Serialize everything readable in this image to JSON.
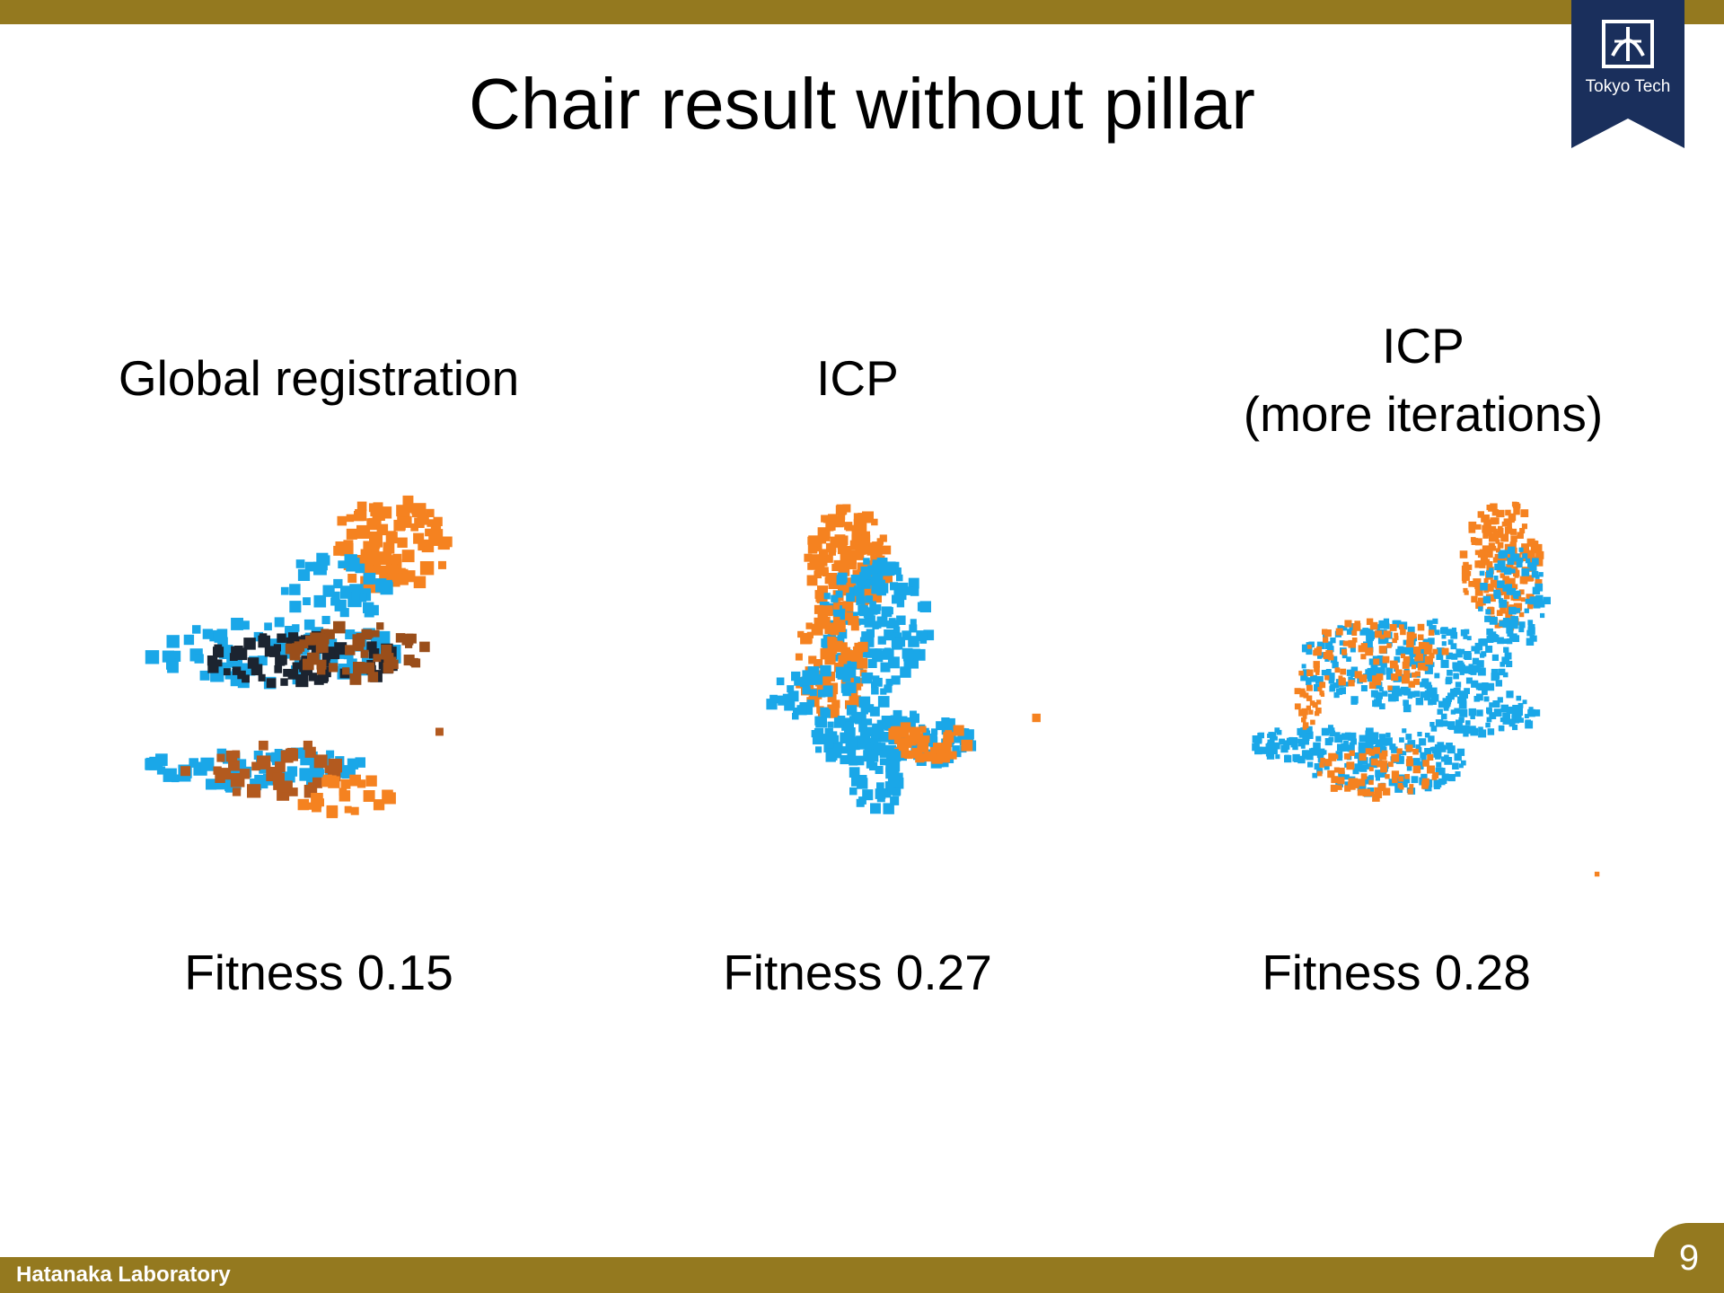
{
  "slide": {
    "title": "Chair result without pillar",
    "footer_label": "Hatanaka Laboratory",
    "page_number": "9",
    "logo_text": "Tokyo Tech"
  },
  "panels": [
    {
      "heading_line1": "Global registration",
      "heading_line2": "",
      "fitness": "Fitness 0.15"
    },
    {
      "heading_line1": "ICP",
      "heading_line2": "",
      "fitness": "Fitness 0.27"
    },
    {
      "heading_line1": "ICP",
      "heading_line2": "(more iterations)",
      "fitness": "Fitness 0.28"
    }
  ],
  "colors": {
    "bar": "#94791f",
    "logo": "#1a2f5c",
    "source_cloud": "#f58220",
    "target_cloud": "#1aa7e8",
    "dark_points": "#1c2430"
  },
  "icons": {
    "logo": "tokyo-tech-emblem-icon"
  }
}
